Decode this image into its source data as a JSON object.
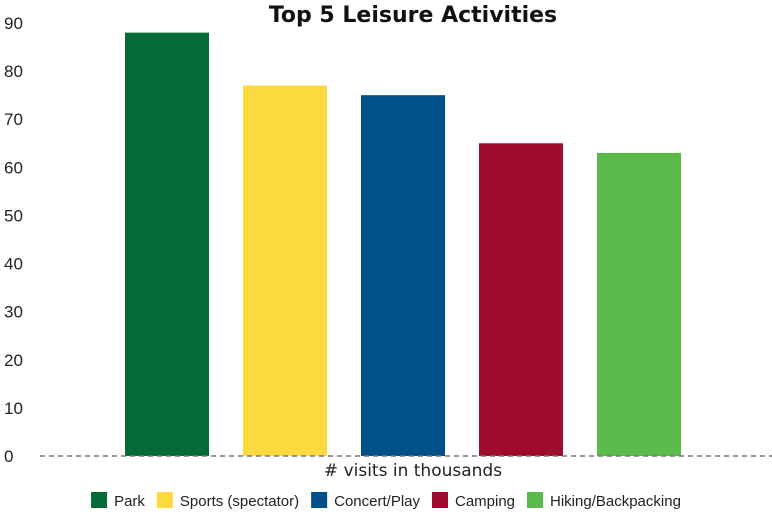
{
  "chart_data": {
    "type": "bar",
    "title": "Top 5 Leisure Activities",
    "xlabel": "# visits in thousands",
    "ylabel": "",
    "ylim": [
      0,
      90
    ],
    "yticks": [
      "0",
      "10",
      "20",
      "30",
      "40",
      "50",
      "60",
      "70",
      "80",
      "90"
    ],
    "grid": false,
    "legend_position": "bottom",
    "categories": [
      "Park",
      "Sports (spectator)",
      "Concert/Play",
      "Camping",
      "Hiking/Backpacking"
    ],
    "values": [
      88,
      77,
      75,
      65,
      63
    ],
    "colors": [
      "#036b35",
      "#fcd93e",
      "#025088",
      "#a00c30",
      "#5aba4a"
    ]
  }
}
